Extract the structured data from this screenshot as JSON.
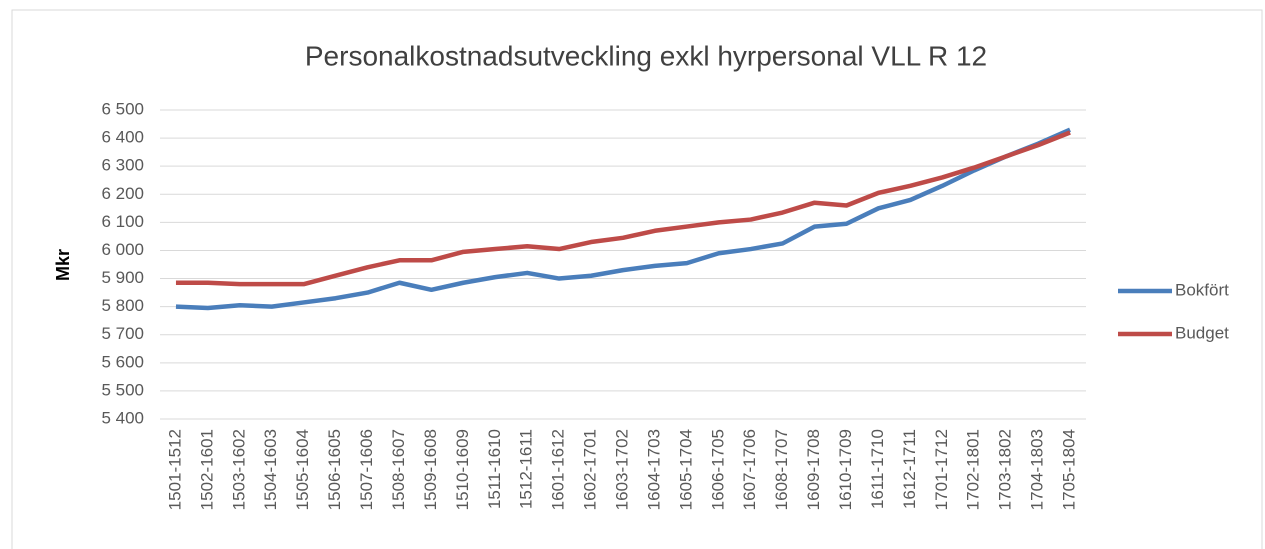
{
  "chart_data": {
    "type": "line",
    "title": "Personalkostnadsutveckling  exkl hyrpersonal  VLL   R 12",
    "y_label": "Mkr",
    "categories": [
      "1501-1512",
      "1502-1601",
      "1503-1602",
      "1504-1603",
      "1505-1604",
      "1506-1605",
      "1507-1606",
      "1508-1607",
      "1509-1608",
      "1510-1609",
      "1511-1610",
      "1512-1611",
      "1601-1612",
      "1602-1701",
      "1603-1702",
      "1604-1703",
      "1605-1704",
      "1606-1705",
      "1607-1706",
      "1608-1707",
      "1609-1708",
      "1610-1709",
      "1611-1710",
      "1612-1711",
      "1701-1712",
      "1702-1801",
      "1703-1802",
      "1704-1803",
      "1705-1804"
    ],
    "series": [
      {
        "name": "Bokfört",
        "color": "#4a7ebb",
        "values": [
          5800,
          5795,
          5805,
          5800,
          5815,
          5830,
          5850,
          5885,
          5860,
          5885,
          5905,
          5920,
          5900,
          5910,
          5930,
          5945,
          5955,
          5990,
          6005,
          6025,
          6085,
          6095,
          6150,
          6180,
          6230,
          6285,
          6335,
          6380,
          6430
        ]
      },
      {
        "name": "Budget",
        "color": "#be4b48",
        "values": [
          5885,
          5885,
          5880,
          5880,
          5880,
          5910,
          5940,
          5965,
          5965,
          5995,
          6005,
          6015,
          6005,
          6030,
          6045,
          6070,
          6085,
          6100,
          6110,
          6135,
          6170,
          6160,
          6205,
          6230,
          6260,
          6295,
          6335,
          6375,
          6420
        ]
      }
    ],
    "ylim": [
      5400,
      6500
    ],
    "yticks": [
      {
        "value": 5400,
        "label": "5 400"
      },
      {
        "value": 5500,
        "label": "5 500"
      },
      {
        "value": 5600,
        "label": "5 600"
      },
      {
        "value": 5700,
        "label": "5 700"
      },
      {
        "value": 5800,
        "label": "5 800"
      },
      {
        "value": 5900,
        "label": "5 900"
      },
      {
        "value": 6000,
        "label": "6 000"
      },
      {
        "value": 6100,
        "label": "6 100"
      },
      {
        "value": 6200,
        "label": "6 200"
      },
      {
        "value": 6300,
        "label": "6 300"
      },
      {
        "value": 6400,
        "label": "6 400"
      },
      {
        "value": 6500,
        "label": "6 500"
      }
    ],
    "grid": true,
    "legend": "right"
  }
}
